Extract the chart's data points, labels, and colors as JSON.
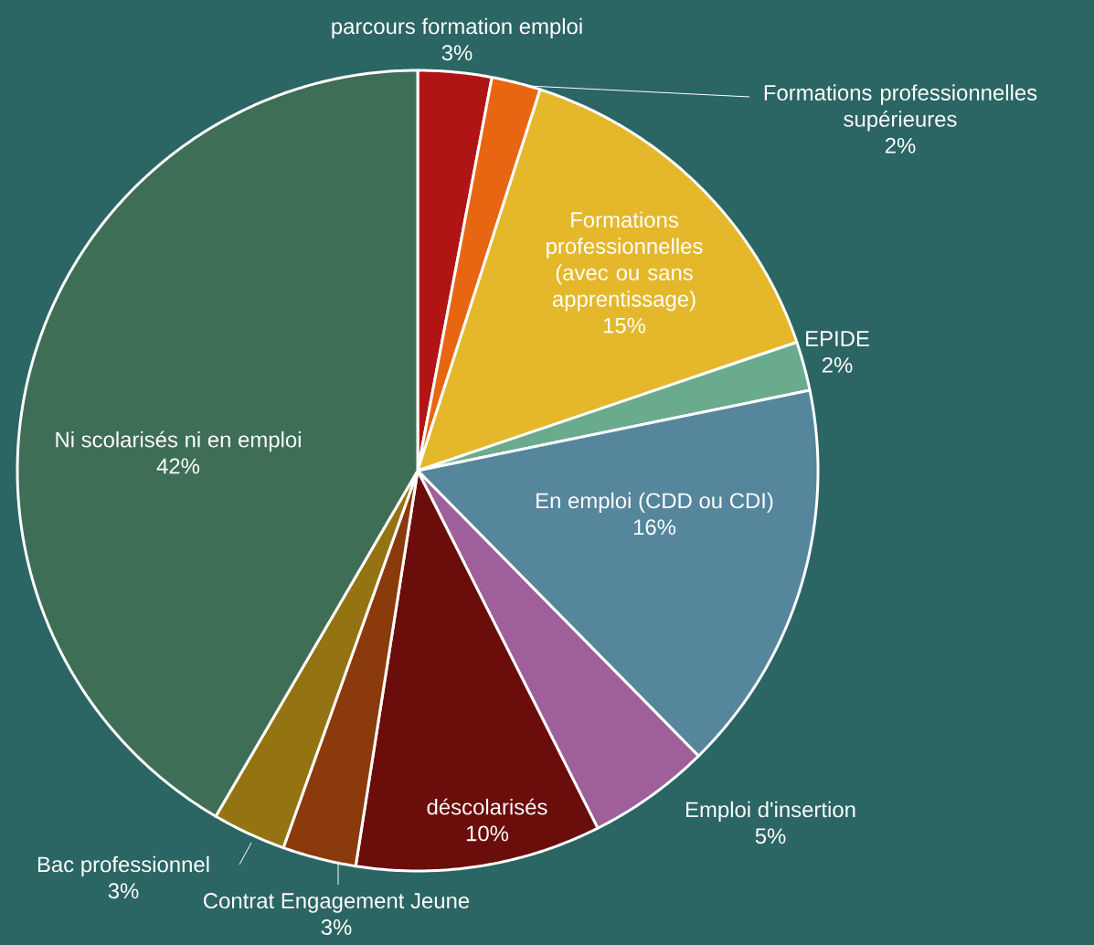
{
  "chart_data": {
    "type": "pie",
    "categories": [
      "parcours formation emploi",
      "Formations professionnelles supérieures",
      "Formations professionnelles (avec ou sans apprentissage)",
      "EPIDE",
      "En emploi (CDD ou CDI)",
      "Emploi d'insertion",
      "déscolarisés",
      "Contrat Engagement Jeune",
      "Bac professionnel",
      "Ni scolarisés ni en emploi"
    ],
    "values": [
      3,
      2,
      15,
      2,
      16,
      5,
      10,
      3,
      3,
      42
    ],
    "value_labels": [
      "3%",
      "2%",
      "15%",
      "2%",
      "16%",
      "5%",
      "10%",
      "3%",
      "3%",
      "42%"
    ],
    "colors": [
      "#b01515",
      "#e86612",
      "#e5b72b",
      "#6aab8e",
      "#55869c",
      "#9e5f9b",
      "#6a0d0b",
      "#8b3a0c",
      "#947313",
      "#3e6e55"
    ]
  }
}
